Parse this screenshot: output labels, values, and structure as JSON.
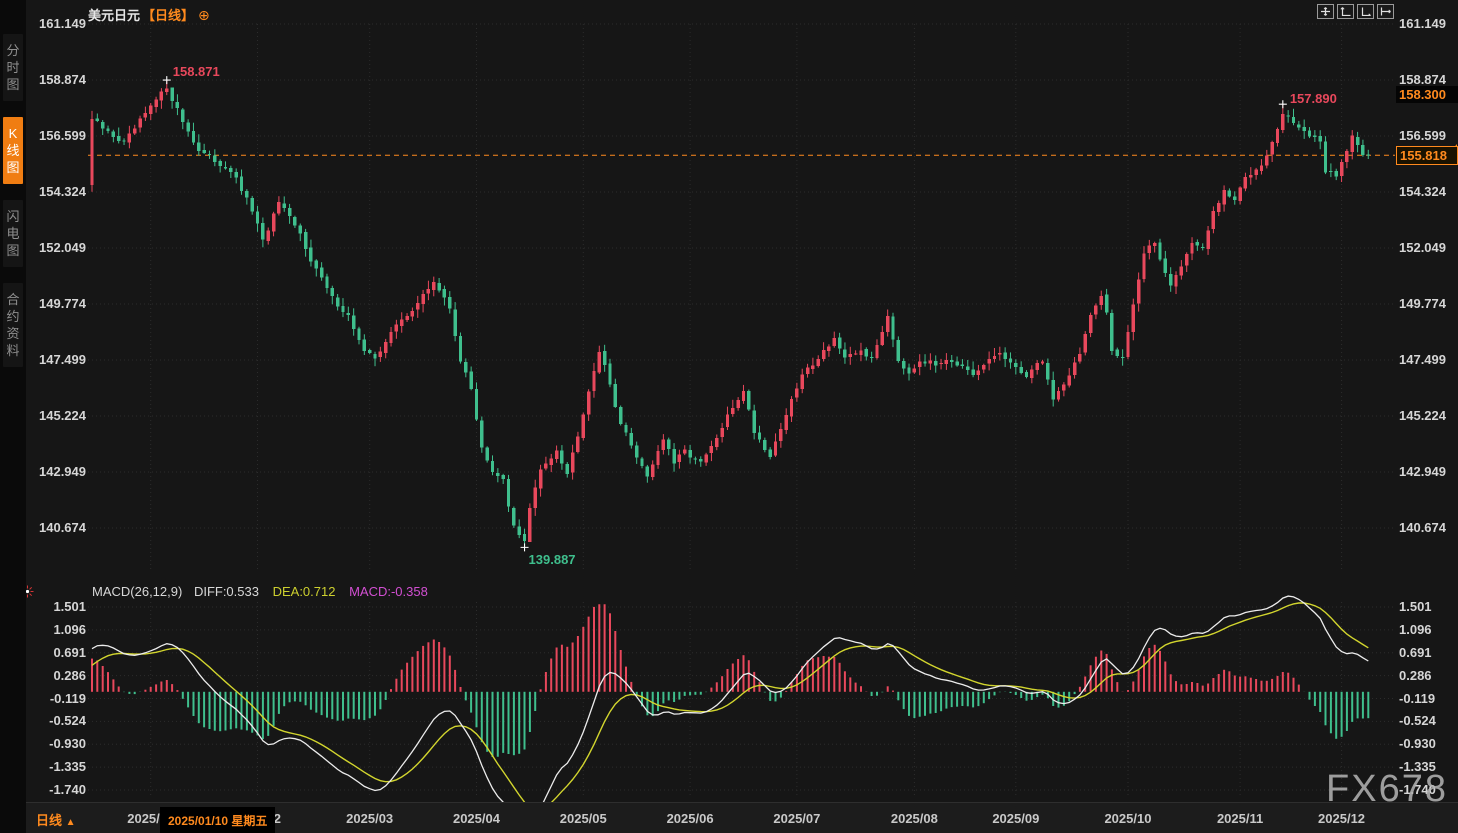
{
  "window": {
    "title_symbol": "美元日元",
    "title_period": "【日线】"
  },
  "icons": {
    "settings_gear": "⊕",
    "period_up_arrow": "▲"
  },
  "sidebar": {
    "tabs": [
      {
        "label": "分时图",
        "selected": false
      },
      {
        "label": "K线图",
        "selected": true
      },
      {
        "label": "闪电图",
        "selected": false
      },
      {
        "label": "合约资料",
        "selected": false
      }
    ]
  },
  "toolbar": {
    "buttons": [
      "pan-tool",
      "y-axis-scale",
      "x-axis-scale",
      "shift-right"
    ]
  },
  "price_axis": {
    "ticks": [
      "161.149",
      "158.874",
      "156.599",
      "154.324",
      "152.049",
      "149.774",
      "147.499",
      "145.224",
      "142.949",
      "140.674"
    ],
    "high_marker": "158.300",
    "current_marker": "155.818"
  },
  "macd_axis": {
    "ticks": [
      "1.501",
      "1.096",
      "0.691",
      "0.286",
      "-0.119",
      "-0.524",
      "-0.930",
      "-1.335",
      "-1.740"
    ]
  },
  "macd_header": {
    "name": "MACD(26,12,9)",
    "diff_label": "DIFF:0.533",
    "dea_label": "DEA:0.712",
    "macd_label": "MACD:-0.358"
  },
  "x_axis": {
    "tooltip": "2025/01/10 星期五"
  },
  "bottom_bar": {
    "period_label": "日线",
    "period_arrow": "▲"
  },
  "watermark": "FX678",
  "colors": {
    "up": "#e8485c",
    "down": "#3fbf8d",
    "accent_orange": "#ff8a1e",
    "diff_line": "#ececec",
    "dea_line": "#d2d52e",
    "macd_value_text": "#d24fd2",
    "axis_text": "#d6d6d6",
    "grid": "#2c2c2c",
    "background": "#161616"
  },
  "chart_data": {
    "type": "candlestick+macd",
    "symbol": "USD/JPY 美元日元",
    "period": "daily",
    "title": "美元日元【日线】",
    "y_ticks": [
      161.149,
      158.874,
      156.599,
      154.324,
      152.049,
      149.774,
      147.499,
      145.224,
      142.949,
      140.674
    ],
    "macd_ticks": [
      1.501,
      1.096,
      0.691,
      0.286,
      -0.119,
      -0.524,
      -0.93,
      -1.335,
      -1.74
    ],
    "current_price": 155.818,
    "reference_high": 158.3,
    "candle_count": 240,
    "first_open": 154.6,
    "last_close": 155.818,
    "marked_high": {
      "index": 14,
      "price": 158.871,
      "label": "158.871"
    },
    "marked_low": {
      "index": 81,
      "price": 139.887,
      "label": "139.887"
    },
    "marked_high2": {
      "index": 223,
      "price": 157.89,
      "label": "157.890"
    },
    "macd": {
      "params": [
        26,
        12,
        9
      ],
      "diff": 0.533,
      "dea": 0.712,
      "hist": -0.358
    },
    "month_labels": [
      {
        "label": "2025/01",
        "i": 11
      },
      {
        "label": "2025/02",
        "i": 31
      },
      {
        "label": "2025/03",
        "i": 52
      },
      {
        "label": "2025/04",
        "i": 72
      },
      {
        "label": "2025/05",
        "i": 92
      },
      {
        "label": "2025/06",
        "i": 112
      },
      {
        "label": "2025/07",
        "i": 132
      },
      {
        "label": "2025/08",
        "i": 154
      },
      {
        "label": "2025/09",
        "i": 173
      },
      {
        "label": "2025/10",
        "i": 194
      },
      {
        "label": "2025/11",
        "i": 215
      },
      {
        "label": "2025/12",
        "i": 234
      }
    ],
    "close_anchors": [
      [
        0,
        157.3
      ],
      [
        2,
        156.9
      ],
      [
        6,
        156.3
      ],
      [
        9,
        157.2
      ],
      [
        14,
        158.6
      ],
      [
        17,
        157.2
      ],
      [
        20,
        156.0
      ],
      [
        26,
        155.2
      ],
      [
        30,
        153.6
      ],
      [
        32,
        152.3
      ],
      [
        35,
        153.9
      ],
      [
        39,
        152.6
      ],
      [
        41,
        151.6
      ],
      [
        45,
        150.0
      ],
      [
        48,
        149.3
      ],
      [
        51,
        147.8
      ],
      [
        53,
        147.6
      ],
      [
        57,
        148.9
      ],
      [
        61,
        149.8
      ],
      [
        64,
        150.7
      ],
      [
        67,
        149.6
      ],
      [
        69,
        147.5
      ],
      [
        71,
        146.3
      ],
      [
        73,
        144.0
      ],
      [
        75,
        142.9
      ],
      [
        77,
        142.6
      ],
      [
        78,
        141.5
      ],
      [
        79,
        140.8
      ],
      [
        81,
        140.1
      ],
      [
        82,
        141.5
      ],
      [
        84,
        143.0
      ],
      [
        87,
        143.9
      ],
      [
        89,
        142.9
      ],
      [
        91,
        144.5
      ],
      [
        93,
        146.3
      ],
      [
        95,
        147.9
      ],
      [
        97,
        146.5
      ],
      [
        99,
        144.9
      ],
      [
        102,
        143.6
      ],
      [
        104,
        142.8
      ],
      [
        107,
        144.3
      ],
      [
        109,
        143.3
      ],
      [
        111,
        143.8
      ],
      [
        114,
        143.3
      ],
      [
        117,
        144.3
      ],
      [
        119,
        145.2
      ],
      [
        122,
        146.3
      ],
      [
        124,
        144.6
      ],
      [
        127,
        143.6
      ],
      [
        130,
        145.3
      ],
      [
        133,
        146.9
      ],
      [
        136,
        147.6
      ],
      [
        139,
        148.4
      ],
      [
        141,
        147.5
      ],
      [
        144,
        147.9
      ],
      [
        146,
        147.5
      ],
      [
        149,
        149.3
      ],
      [
        151,
        147.5
      ],
      [
        153,
        147.0
      ],
      [
        155,
        147.5
      ],
      [
        158,
        147.3
      ],
      [
        160,
        147.6
      ],
      [
        163,
        147.2
      ],
      [
        165,
        146.8
      ],
      [
        168,
        147.5
      ],
      [
        170,
        147.8
      ],
      [
        173,
        147.1
      ],
      [
        175,
        146.9
      ],
      [
        178,
        147.5
      ],
      [
        180,
        145.9
      ],
      [
        183,
        146.9
      ],
      [
        185,
        147.8
      ],
      [
        187,
        149.3
      ],
      [
        189,
        150.0
      ],
      [
        190,
        149.4
      ],
      [
        191,
        147.9
      ],
      [
        193,
        147.6
      ],
      [
        195,
        149.8
      ],
      [
        197,
        151.8
      ],
      [
        199,
        152.3
      ],
      [
        200,
        151.6
      ],
      [
        202,
        150.6
      ],
      [
        204,
        151.3
      ],
      [
        206,
        152.3
      ],
      [
        208,
        152.0
      ],
      [
        210,
        153.5
      ],
      [
        212,
        154.3
      ],
      [
        214,
        154.0
      ],
      [
        216,
        154.9
      ],
      [
        219,
        155.5
      ],
      [
        221,
        156.3
      ],
      [
        223,
        157.5
      ],
      [
        226,
        157.0
      ],
      [
        228,
        156.6
      ],
      [
        230,
        156.3
      ],
      [
        231,
        155.2
      ],
      [
        233,
        155.0
      ],
      [
        235,
        156.0
      ],
      [
        236,
        156.7
      ],
      [
        238,
        155.9
      ],
      [
        239,
        155.818
      ]
    ]
  }
}
